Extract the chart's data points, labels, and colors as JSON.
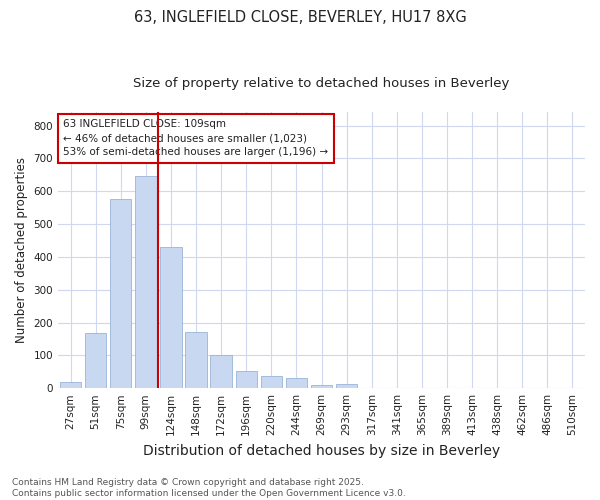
{
  "title1": "63, INGLEFIELD CLOSE, BEVERLEY, HU17 8XG",
  "title2": "Size of property relative to detached houses in Beverley",
  "xlabel": "Distribution of detached houses by size in Beverley",
  "ylabel": "Number of detached properties",
  "categories": [
    "27sqm",
    "51sqm",
    "75sqm",
    "99sqm",
    "124sqm",
    "148sqm",
    "172sqm",
    "196sqm",
    "220sqm",
    "244sqm",
    "269sqm",
    "293sqm",
    "317sqm",
    "341sqm",
    "365sqm",
    "389sqm",
    "413sqm",
    "438sqm",
    "462sqm",
    "486sqm",
    "510sqm"
  ],
  "values": [
    18,
    168,
    575,
    645,
    430,
    170,
    100,
    52,
    38,
    32,
    10,
    12,
    0,
    0,
    1,
    0,
    0,
    1,
    0,
    0,
    2
  ],
  "bar_color": "#c8d8f0",
  "bar_edge_color": "#9ab4d8",
  "vline_x": 3.5,
  "vline_color": "#cc0000",
  "annotation_title": "63 INGLEFIELD CLOSE: 109sqm",
  "annotation_line1": "← 46% of detached houses are smaller (1,023)",
  "annotation_line2": "53% of semi-detached houses are larger (1,196) →",
  "annotation_box_color": "#cc0000",
  "ylim": [
    0,
    840
  ],
  "yticks": [
    0,
    100,
    200,
    300,
    400,
    500,
    600,
    700,
    800
  ],
  "footer_line1": "Contains HM Land Registry data © Crown copyright and database right 2025.",
  "footer_line2": "Contains public sector information licensed under the Open Government Licence v3.0.",
  "bg_color": "#ffffff",
  "grid_color": "#d0d8f0",
  "title_fontsize": 10.5,
  "subtitle_fontsize": 9.5,
  "ylabel_fontsize": 8.5,
  "xlabel_fontsize": 10,
  "tick_fontsize": 7.5,
  "footer_fontsize": 6.5
}
